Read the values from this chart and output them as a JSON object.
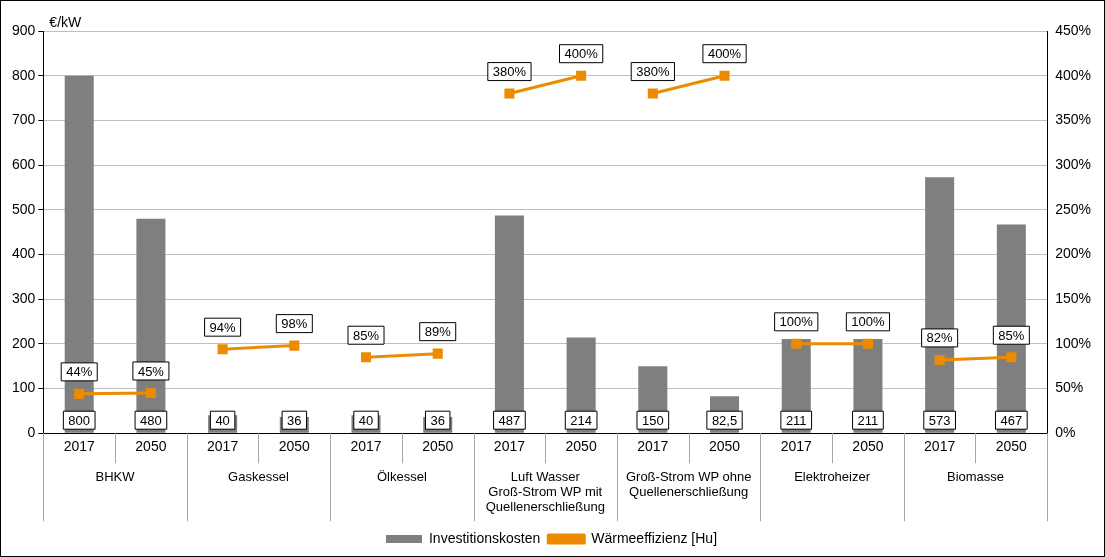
{
  "chart_data": {
    "type": "bar",
    "ylabel": "€/kW",
    "categories": [
      "2017",
      "2050",
      "2017",
      "2050",
      "2017",
      "2050",
      "2017",
      "2050",
      "2017",
      "2050",
      "2017",
      "2050",
      "2017",
      "2050"
    ],
    "annotations": [
      "BHKW",
      "Gaskessel",
      "Ölkessel",
      "Luft Wasser Groß-Strom WP mit Quellenerschließung",
      "Groß-Strom WP ohne Quellenerschließung",
      "Elektroheizer",
      "Biomasse"
    ],
    "series": [
      {
        "name": "Investitionskosten",
        "color": "#7f7f7f",
        "values": [
          800,
          480,
          40,
          36,
          40,
          36,
          487,
          214,
          150,
          82.5,
          211,
          211,
          573,
          467
        ],
        "value_labels": [
          "800",
          "480",
          "40",
          "36",
          "40",
          "36",
          "487",
          "214",
          "150",
          "82,5",
          "211",
          "211",
          "573",
          "467"
        ]
      },
      {
        "name": "Wärmeeffizienz [Hu]",
        "type": "line",
        "axis": "y2",
        "color": "#ed8b00",
        "marker": "square",
        "values": [
          44,
          45,
          94,
          98,
          85,
          89,
          380,
          400,
          380,
          400,
          100,
          100,
          82,
          85
        ],
        "value_labels": [
          "44%",
          "45%",
          "94%",
          "98%",
          "85%",
          "89%",
          "380%",
          "400%",
          "380%",
          "400%",
          "100%",
          "100%",
          "82%",
          "85%"
        ]
      }
    ],
    "ylim": [
      0,
      900
    ],
    "yticks": [
      0,
      100,
      200,
      300,
      400,
      500,
      600,
      700,
      800,
      900
    ],
    "y2lim": [
      0,
      450
    ],
    "y2ticks": [
      {
        "value": 0,
        "label": "0%"
      },
      {
        "value": 50,
        "label": "50%"
      },
      {
        "value": 100,
        "label": "100%"
      },
      {
        "value": 150,
        "label": "150%"
      },
      {
        "value": 200,
        "label": "200%"
      },
      {
        "value": 250,
        "label": "250%"
      },
      {
        "value": 300,
        "label": "300%"
      },
      {
        "value": 350,
        "label": "350%"
      },
      {
        "value": 400,
        "label": "400%"
      },
      {
        "value": 450,
        "label": "450%"
      }
    ],
    "grid": "y",
    "legend": "bottom"
  }
}
